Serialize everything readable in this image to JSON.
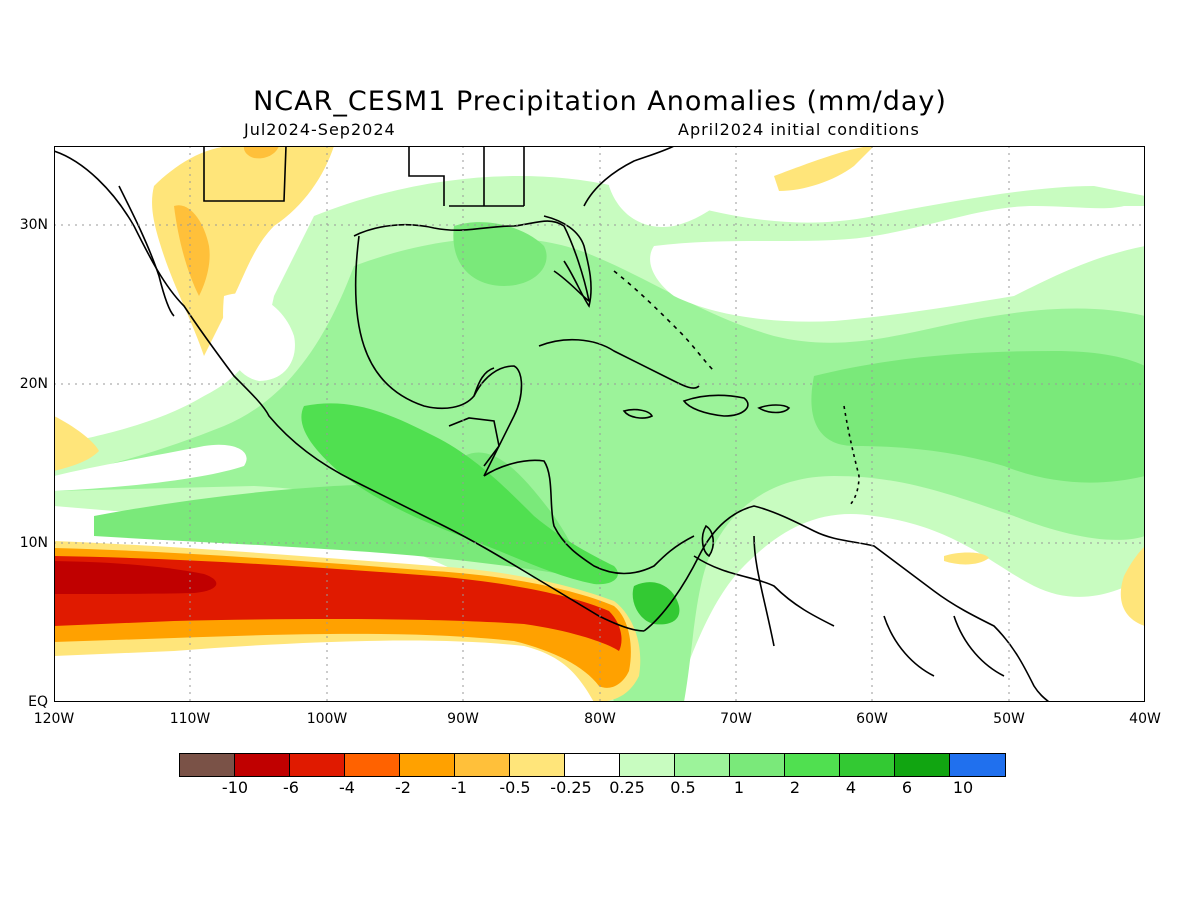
{
  "title": "NCAR_CESM1 Precipitation Anomalies (mm/day)",
  "subtitle_left": "Jul2024-Sep2024",
  "subtitle_right": "April2024 initial conditions",
  "axes": {
    "y_labels": [
      "30N",
      "20N",
      "10N",
      "EQ"
    ],
    "x_labels": [
      "120W",
      "110W",
      "100W",
      "90W",
      "80W",
      "70W",
      "60W",
      "50W",
      "40W"
    ],
    "lon_range": [
      -120,
      -40
    ],
    "lat_range": [
      0,
      35
    ],
    "grid": "dotted"
  },
  "colorbar": {
    "colors": [
      "#7a5247",
      "#c00000",
      "#e01a00",
      "#ff6200",
      "#ffa100",
      "#ffc03a",
      "#ffe57a",
      "#ffffff",
      "#c8fcc0",
      "#9cf39a",
      "#7ae97a",
      "#50e050",
      "#33c933",
      "#11a511",
      "#2070ee"
    ],
    "labels": [
      "-10",
      "-6",
      "-4",
      "-2",
      "-1",
      "-0.5",
      "-0.25",
      "0.25",
      "0.5",
      "1",
      "2",
      "4",
      "6",
      "10"
    ]
  },
  "colors": {
    "dry_strong": "#c00000",
    "dry": "#e01a00",
    "wet_light": "#c8fcc0",
    "wet": "#7ae97a",
    "wet_strong": "#33c933"
  }
}
